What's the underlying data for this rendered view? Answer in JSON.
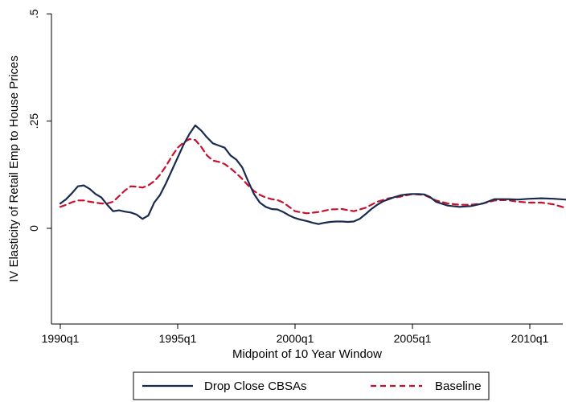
{
  "chart_data": {
    "type": "line",
    "xlabel": "Midpoint of 10 Year Window",
    "ylabel": "IV Elasticity of Retail Emp to House Prices",
    "xlim": [
      1990,
      2012.5
    ],
    "ylim": [
      -0.23,
      0.5
    ],
    "x_ticks": [
      {
        "value": 1990,
        "label": "1990q1"
      },
      {
        "value": 1995,
        "label": "1995q1"
      },
      {
        "value": 2000,
        "label": "2000q1"
      },
      {
        "value": 2005,
        "label": "2005q1"
      },
      {
        "value": 2010,
        "label": "2010q1"
      }
    ],
    "y_ticks": [
      {
        "value": 0,
        "label": "0"
      },
      {
        "value": 0.25,
        "label": ".25"
      },
      {
        "value": 0.5,
        "label": ".5"
      }
    ],
    "grid": false,
    "legend_position": "bottom",
    "series": [
      {
        "name": "Drop Close CBSAs",
        "color": "#1a2a4f",
        "style": "solid",
        "x": [
          1990.0,
          1990.25,
          1990.5,
          1990.75,
          1991.0,
          1991.25,
          1991.5,
          1991.75,
          1992.0,
          1992.25,
          1992.5,
          1992.75,
          1993.0,
          1993.25,
          1993.5,
          1993.75,
          1994.0,
          1994.25,
          1994.5,
          1994.75,
          1995.0,
          1995.25,
          1995.5,
          1995.75,
          1996.0,
          1996.25,
          1996.5,
          1996.75,
          1997.0,
          1997.25,
          1997.5,
          1997.75,
          1998.0,
          1998.25,
          1998.5,
          1998.75,
          1999.0,
          1999.25,
          1999.5,
          1999.75,
          2000.0,
          2000.25,
          2000.5,
          2000.75,
          2001.0,
          2001.25,
          2001.5,
          2001.75,
          2002.0,
          2002.25,
          2002.5,
          2002.75,
          2003.0,
          2003.25,
          2003.5,
          2003.75,
          2004.0,
          2004.25,
          2004.5,
          2004.75,
          2005.0,
          2005.25,
          2005.5,
          2005.75,
          2006.0,
          2006.5,
          2007.0,
          2007.5,
          2008.0,
          2008.5,
          2009.0,
          2009.5,
          2010.0,
          2010.5,
          2011.0,
          2011.5,
          2012.0,
          2012.5
        ],
        "y": [
          0.058,
          0.068,
          0.082,
          0.098,
          0.1,
          0.092,
          0.08,
          0.072,
          0.055,
          0.04,
          0.042,
          0.039,
          0.037,
          0.032,
          0.022,
          0.03,
          0.06,
          0.078,
          0.105,
          0.135,
          0.165,
          0.195,
          0.22,
          0.24,
          0.228,
          0.212,
          0.198,
          0.193,
          0.188,
          0.17,
          0.16,
          0.142,
          0.11,
          0.08,
          0.06,
          0.05,
          0.045,
          0.044,
          0.038,
          0.03,
          0.024,
          0.02,
          0.017,
          0.013,
          0.01,
          0.013,
          0.015,
          0.016,
          0.016,
          0.015,
          0.016,
          0.022,
          0.033,
          0.045,
          0.055,
          0.063,
          0.068,
          0.073,
          0.077,
          0.079,
          0.08,
          0.08,
          0.079,
          0.073,
          0.062,
          0.053,
          0.05,
          0.052,
          0.058,
          0.068,
          0.068,
          0.067,
          0.069,
          0.07,
          0.069,
          0.067,
          0.066,
          0.065
        ]
      },
      {
        "name": "Baseline",
        "color": "#c8102e",
        "style": "dashed",
        "x": [
          1990.0,
          1990.25,
          1990.5,
          1990.75,
          1991.0,
          1991.25,
          1991.5,
          1991.75,
          1992.0,
          1992.25,
          1992.5,
          1992.75,
          1993.0,
          1993.25,
          1993.5,
          1993.75,
          1994.0,
          1994.25,
          1994.5,
          1994.75,
          1995.0,
          1995.25,
          1995.5,
          1995.75,
          1996.0,
          1996.25,
          1996.5,
          1996.75,
          1997.0,
          1997.25,
          1997.5,
          1997.75,
          1998.0,
          1998.25,
          1998.5,
          1998.75,
          1999.0,
          1999.25,
          1999.5,
          1999.75,
          2000.0,
          2000.5,
          2001.0,
          2001.5,
          2002.0,
          2002.5,
          2003.0,
          2003.5,
          2004.0,
          2004.5,
          2005.0,
          2005.5,
          2006.0,
          2006.5,
          2007.0,
          2007.5,
          2008.0,
          2008.5,
          2009.0,
          2009.5,
          2010.0,
          2010.5,
          2011.0,
          2011.5,
          2012.0,
          2012.5
        ],
        "y": [
          0.05,
          0.055,
          0.061,
          0.065,
          0.065,
          0.062,
          0.06,
          0.058,
          0.058,
          0.062,
          0.075,
          0.088,
          0.098,
          0.097,
          0.095,
          0.1,
          0.11,
          0.125,
          0.145,
          0.168,
          0.188,
          0.2,
          0.208,
          0.206,
          0.19,
          0.17,
          0.158,
          0.155,
          0.15,
          0.14,
          0.128,
          0.115,
          0.1,
          0.087,
          0.078,
          0.072,
          0.068,
          0.066,
          0.06,
          0.05,
          0.04,
          0.035,
          0.038,
          0.044,
          0.045,
          0.04,
          0.048,
          0.062,
          0.07,
          0.074,
          0.08,
          0.078,
          0.065,
          0.058,
          0.055,
          0.055,
          0.058,
          0.065,
          0.066,
          0.062,
          0.06,
          0.06,
          0.056,
          0.048,
          0.047,
          0.047
        ]
      }
    ]
  }
}
